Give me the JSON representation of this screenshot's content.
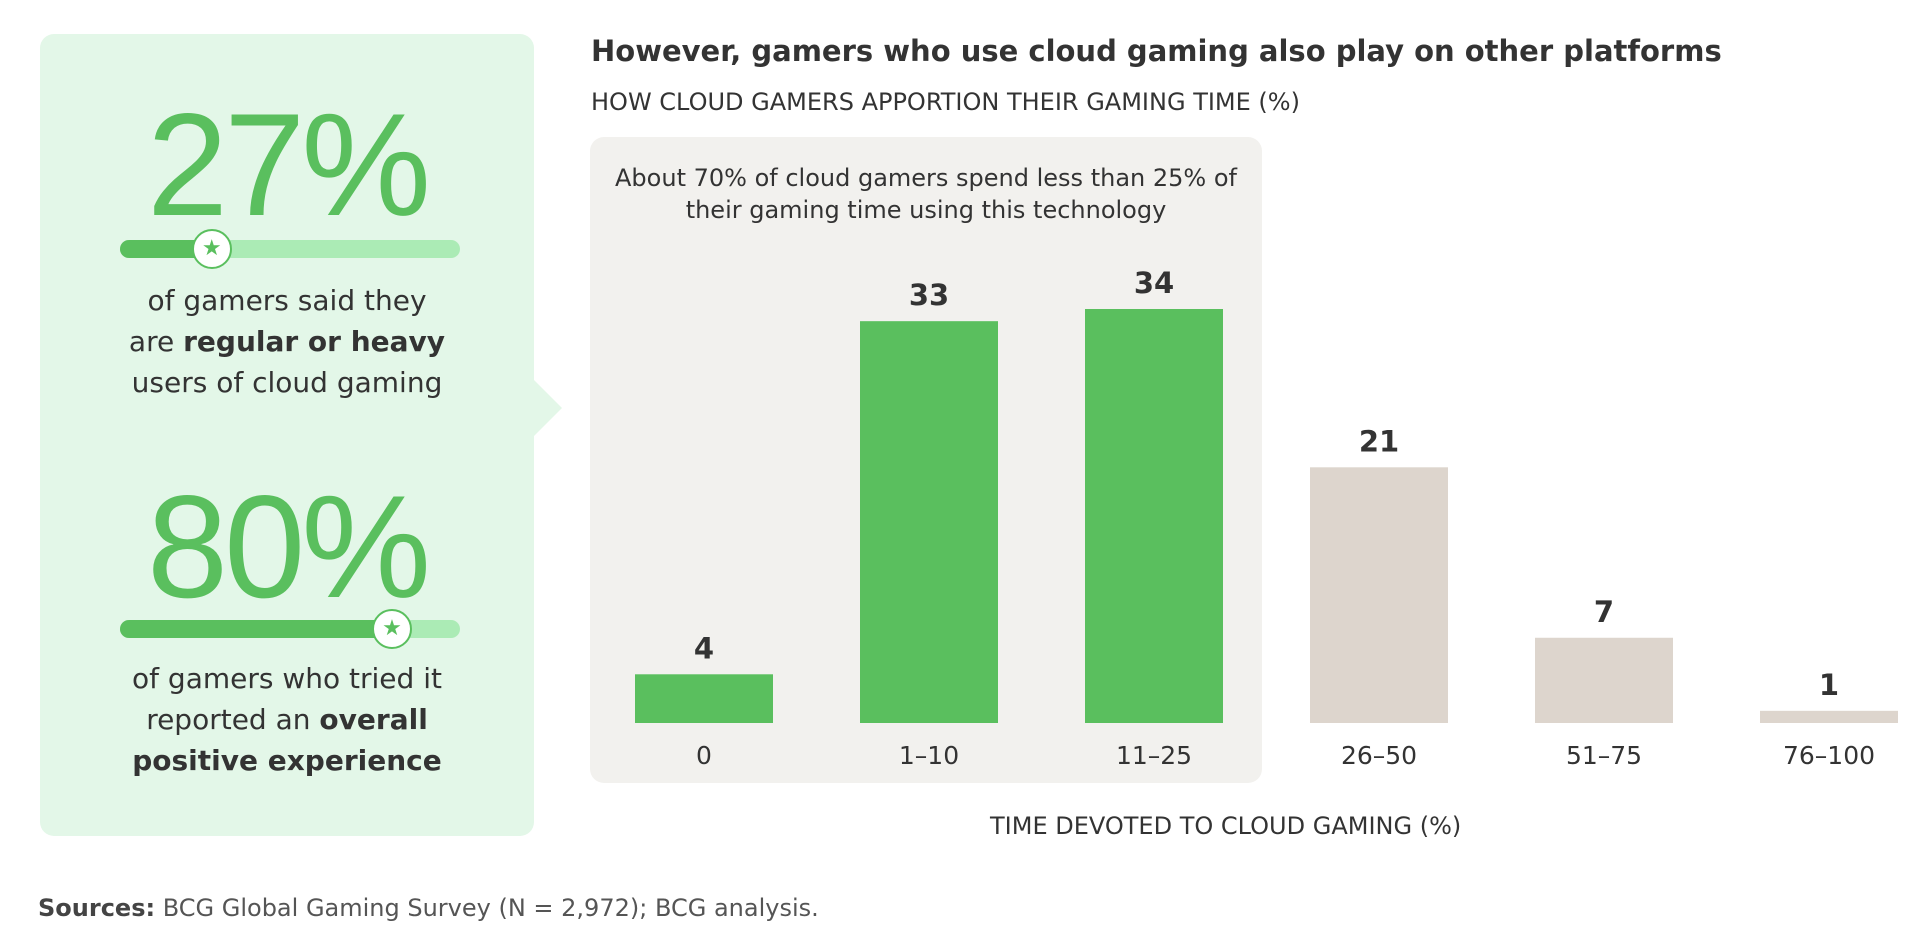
{
  "left_panel": {
    "stat1": {
      "value": "27%",
      "progress": 0.27,
      "text_before": "of gamers said they",
      "text_mid": "are ",
      "text_bold": "regular or heavy",
      "text_after": "users of cloud gaming"
    },
    "stat2": {
      "value": "80%",
      "progress": 0.8,
      "text_before": "of gamers who tried it",
      "text_mid": "reported an ",
      "text_bold": "overall",
      "text_bold2": "positive experience"
    },
    "knob_icon": "star-icon"
  },
  "colors": {
    "accent_green": "#5abf5e",
    "light_green": "#abebb5",
    "beige": "#ddd5cd",
    "panel_bg": "#e3f7e8",
    "highlight_bg": "#f2f1ee"
  },
  "chart_data": {
    "type": "bar",
    "title": "However, gamers who use cloud gaming also play on other platforms",
    "subtitle": "HOW CLOUD GAMERS APPORTION THEIR GAMING TIME (%)",
    "annotation": "About 70% of cloud gamers spend less than 25% of their gaming time using this technology",
    "xlabel": "TIME DEVOTED TO CLOUD GAMING (%)",
    "ylabel": "",
    "categories": [
      "0",
      "1–10",
      "11–25",
      "26–50",
      "51–75",
      "76–100"
    ],
    "values": [
      4,
      33,
      34,
      21,
      7,
      1
    ],
    "highlighted": [
      true,
      true,
      true,
      false,
      false,
      false
    ],
    "ylim": [
      0,
      34
    ],
    "grid": false
  },
  "sources": {
    "label": "Sources:",
    "text": " BCG Global Gaming Survey (N = 2,972); BCG analysis."
  }
}
